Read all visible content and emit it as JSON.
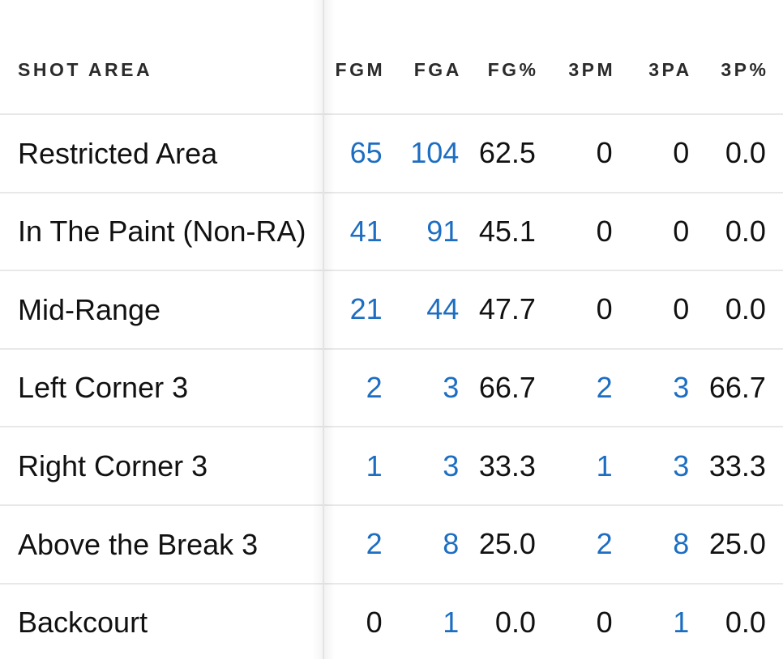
{
  "colors": {
    "accent_blue": "#1d6ec2",
    "text_primary": "#111111",
    "header_text": "#2b2b2b",
    "divider": "#e8e8e8",
    "background": "#ffffff"
  },
  "table": {
    "columns": [
      {
        "key": "shot_area",
        "label": "SHOT AREA"
      },
      {
        "key": "fgm",
        "label": "FGM"
      },
      {
        "key": "fga",
        "label": "FGA"
      },
      {
        "key": "fg_pct",
        "label": "FG%"
      },
      {
        "key": "3pm",
        "label": "3PM"
      },
      {
        "key": "3pa",
        "label": "3PA"
      },
      {
        "key": "3p_pct",
        "label": "3P%"
      }
    ],
    "rows": [
      {
        "label": "Restricted Area",
        "cells": [
          {
            "text": "65",
            "blue": true
          },
          {
            "text": "104",
            "blue": true
          },
          {
            "text": "62.5",
            "blue": false
          },
          {
            "text": "0",
            "blue": false
          },
          {
            "text": "0",
            "blue": false
          },
          {
            "text": "0.0",
            "blue": false
          }
        ]
      },
      {
        "label": "In The Paint (Non-RA)",
        "cells": [
          {
            "text": "41",
            "blue": true
          },
          {
            "text": "91",
            "blue": true
          },
          {
            "text": "45.1",
            "blue": false
          },
          {
            "text": "0",
            "blue": false
          },
          {
            "text": "0",
            "blue": false
          },
          {
            "text": "0.0",
            "blue": false
          }
        ]
      },
      {
        "label": "Mid-Range",
        "cells": [
          {
            "text": "21",
            "blue": true
          },
          {
            "text": "44",
            "blue": true
          },
          {
            "text": "47.7",
            "blue": false
          },
          {
            "text": "0",
            "blue": false
          },
          {
            "text": "0",
            "blue": false
          },
          {
            "text": "0.0",
            "blue": false
          }
        ]
      },
      {
        "label": "Left Corner 3",
        "cells": [
          {
            "text": "2",
            "blue": true
          },
          {
            "text": "3",
            "blue": true
          },
          {
            "text": "66.7",
            "blue": false
          },
          {
            "text": "2",
            "blue": true
          },
          {
            "text": "3",
            "blue": true
          },
          {
            "text": "66.7",
            "blue": false
          }
        ]
      },
      {
        "label": "Right Corner 3",
        "cells": [
          {
            "text": "1",
            "blue": true
          },
          {
            "text": "3",
            "blue": true
          },
          {
            "text": "33.3",
            "blue": false
          },
          {
            "text": "1",
            "blue": true
          },
          {
            "text": "3",
            "blue": true
          },
          {
            "text": "33.3",
            "blue": false
          }
        ]
      },
      {
        "label": "Above the Break 3",
        "cells": [
          {
            "text": "2",
            "blue": true
          },
          {
            "text": "8",
            "blue": true
          },
          {
            "text": "25.0",
            "blue": false
          },
          {
            "text": "2",
            "blue": true
          },
          {
            "text": "8",
            "blue": true
          },
          {
            "text": "25.0",
            "blue": false
          }
        ]
      },
      {
        "label": "Backcourt",
        "cells": [
          {
            "text": "0",
            "blue": false
          },
          {
            "text": "1",
            "blue": true
          },
          {
            "text": "0.0",
            "blue": false
          },
          {
            "text": "0",
            "blue": false
          },
          {
            "text": "1",
            "blue": true
          },
          {
            "text": "0.0",
            "blue": false
          }
        ]
      }
    ]
  }
}
